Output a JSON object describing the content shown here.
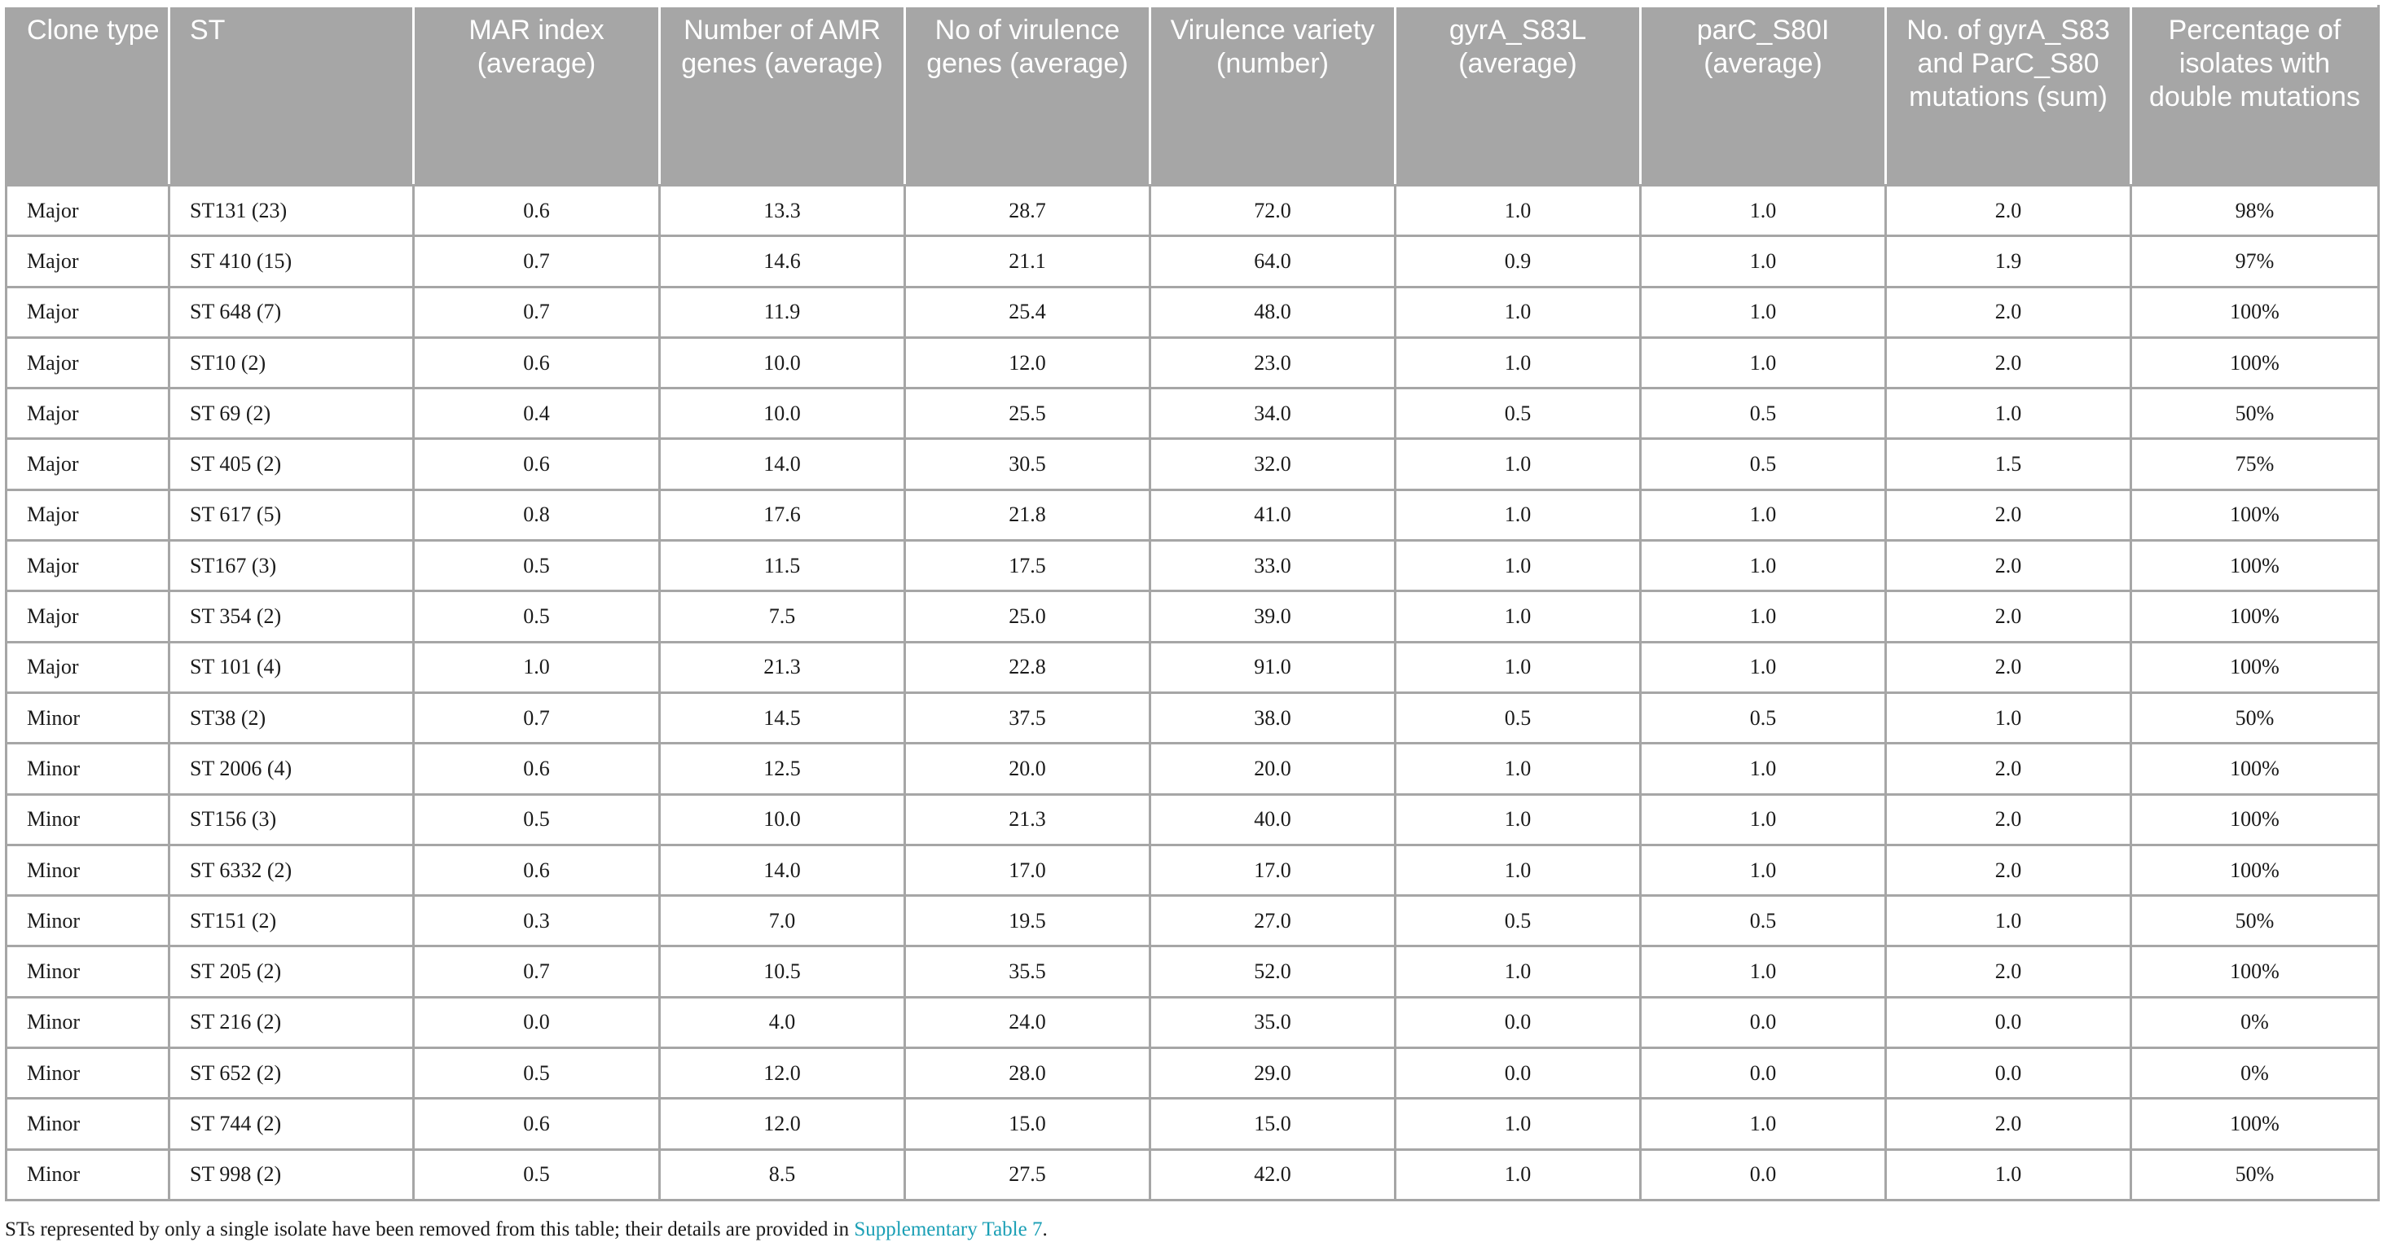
{
  "table": {
    "headers": [
      "Clone type",
      "ST",
      "MAR index (average)",
      "Number of AMR genes (average)",
      "No of virulence genes (average)",
      "Virulence variety (number)",
      "gyrA_S83L (average)",
      "parC_S80I (average)",
      "No. of gyrA_S83 and ParC_S80 mutations (sum)",
      "Percentage of isolates with double mutations"
    ],
    "rows": [
      [
        "Major",
        "ST131 (23)",
        "0.6",
        "13.3",
        "28.7",
        "72.0",
        "1.0",
        "1.0",
        "2.0",
        "98%"
      ],
      [
        "Major",
        "ST 410 (15)",
        "0.7",
        "14.6",
        "21.1",
        "64.0",
        "0.9",
        "1.0",
        "1.9",
        "97%"
      ],
      [
        "Major",
        "ST 648 (7)",
        "0.7",
        "11.9",
        "25.4",
        "48.0",
        "1.0",
        "1.0",
        "2.0",
        "100%"
      ],
      [
        "Major",
        "ST10 (2)",
        "0.6",
        "10.0",
        "12.0",
        "23.0",
        "1.0",
        "1.0",
        "2.0",
        "100%"
      ],
      [
        "Major",
        "ST 69 (2)",
        "0.4",
        "10.0",
        "25.5",
        "34.0",
        "0.5",
        "0.5",
        "1.0",
        "50%"
      ],
      [
        "Major",
        "ST 405 (2)",
        "0.6",
        "14.0",
        "30.5",
        "32.0",
        "1.0",
        "0.5",
        "1.5",
        "75%"
      ],
      [
        "Major",
        "ST 617 (5)",
        "0.8",
        "17.6",
        "21.8",
        "41.0",
        "1.0",
        "1.0",
        "2.0",
        "100%"
      ],
      [
        "Major",
        "ST167 (3)",
        "0.5",
        "11.5",
        "17.5",
        "33.0",
        "1.0",
        "1.0",
        "2.0",
        "100%"
      ],
      [
        "Major",
        "ST 354 (2)",
        "0.5",
        "7.5",
        "25.0",
        "39.0",
        "1.0",
        "1.0",
        "2.0",
        "100%"
      ],
      [
        "Major",
        "ST 101 (4)",
        "1.0",
        "21.3",
        "22.8",
        "91.0",
        "1.0",
        "1.0",
        "2.0",
        "100%"
      ],
      [
        "Minor",
        "ST38 (2)",
        "0.7",
        "14.5",
        "37.5",
        "38.0",
        "0.5",
        "0.5",
        "1.0",
        "50%"
      ],
      [
        "Minor",
        "ST 2006 (4)",
        "0.6",
        "12.5",
        "20.0",
        "20.0",
        "1.0",
        "1.0",
        "2.0",
        "100%"
      ],
      [
        "Minor",
        "ST156 (3)",
        "0.5",
        "10.0",
        "21.3",
        "40.0",
        "1.0",
        "1.0",
        "2.0",
        "100%"
      ],
      [
        "Minor",
        "ST 6332 (2)",
        "0.6",
        "14.0",
        "17.0",
        "17.0",
        "1.0",
        "1.0",
        "2.0",
        "100%"
      ],
      [
        "Minor",
        "ST151 (2)",
        "0.3",
        "7.0",
        "19.5",
        "27.0",
        "0.5",
        "0.5",
        "1.0",
        "50%"
      ],
      [
        "Minor",
        "ST 205 (2)",
        "0.7",
        "10.5",
        "35.5",
        "52.0",
        "1.0",
        "1.0",
        "2.0",
        "100%"
      ],
      [
        "Minor",
        "ST 216 (2)",
        "0.0",
        "4.0",
        "24.0",
        "35.0",
        "0.0",
        "0.0",
        "0.0",
        "0%"
      ],
      [
        "Minor",
        "ST 652 (2)",
        "0.5",
        "12.0",
        "28.0",
        "29.0",
        "0.0",
        "0.0",
        "0.0",
        "0%"
      ],
      [
        "Minor",
        "ST 744 (2)",
        "0.6",
        "12.0",
        "15.0",
        "15.0",
        "1.0",
        "1.0",
        "2.0",
        "100%"
      ],
      [
        "Minor",
        "ST 998 (2)",
        "0.5",
        "8.5",
        "27.5",
        "42.0",
        "1.0",
        "0.0",
        "1.0",
        "50%"
      ]
    ]
  },
  "footnote": {
    "text": "STs represented by only a single isolate have been removed from this table; their details are provided in ",
    "link": "Supplementary Table 7",
    "end": "."
  }
}
